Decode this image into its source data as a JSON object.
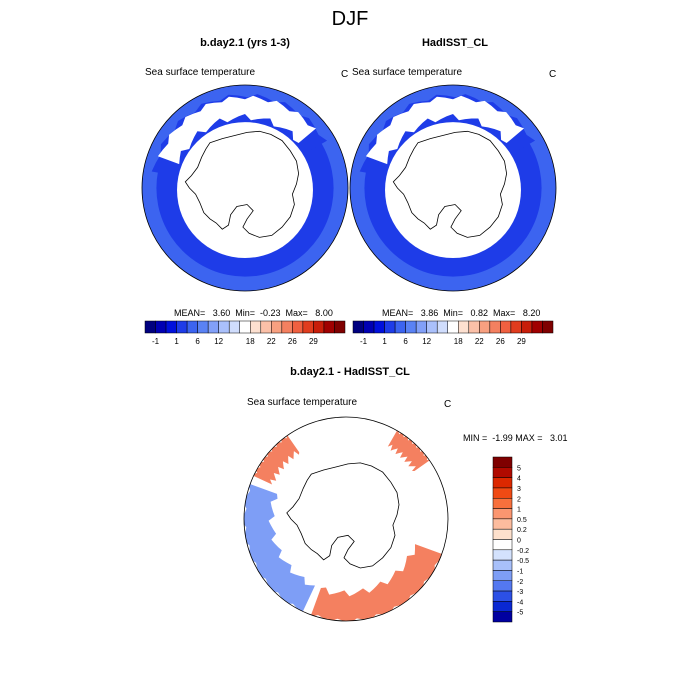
{
  "figure": {
    "title": "DJF",
    "coast_color": "#000000",
    "land_color": "#ffffff"
  },
  "panels": [
    {
      "title": "b.day2.1 (yrs 1-3)",
      "variable": "Sea surface temperature",
      "units": "C",
      "stats_text": "MEAN=   3.60  Min=  -0.23  Max=   8.00",
      "mean": 3.6,
      "min": -0.23,
      "max": 8.0
    },
    {
      "title": "HadISST_CL",
      "variable": "Sea surface temperature",
      "units": "C",
      "stats_text": "MEAN=   3.86  Min=   0.82  Max=   8.20",
      "mean": 3.86,
      "min": 0.82,
      "max": 8.2
    },
    {
      "title": "b.day2.1 - HadISST_CL",
      "variable": "Sea surface temperature",
      "units": "C",
      "stats_text": "MIN =  -1.99 MAX =   3.01",
      "min": -1.99,
      "max": 3.01
    }
  ],
  "chart_data": {
    "type": "heatmap",
    "projection": "south polar stereographic",
    "season": "DJF",
    "sst_colorbar": {
      "labels": [
        "-1",
        "1",
        "6",
        "12",
        "18",
        "22",
        "26",
        "29"
      ],
      "colors": [
        "#00007f",
        "#0000b3",
        "#0010dc",
        "#1e3ce8",
        "#3c64f0",
        "#5a82f4",
        "#82a0f8",
        "#aac0fb",
        "#d0ddfd",
        "#ffffff",
        "#fde0d0",
        "#fbc0a8",
        "#f8a080",
        "#f48060",
        "#f06040",
        "#e03c1e",
        "#c81e0a",
        "#a00000",
        "#7f0000"
      ]
    },
    "diff_colorbar": {
      "labels": [
        "5",
        "4",
        "3",
        "2",
        "1",
        "0.5",
        "0.2",
        "0",
        "-0.2",
        "-0.5",
        "-1",
        "-2",
        "-3",
        "-4",
        "-5"
      ],
      "colors": [
        "#7f0000",
        "#b00a00",
        "#dc2800",
        "#f04a14",
        "#f8703c",
        "#fb9670",
        "#fcbc9e",
        "#fde0cc",
        "#ffffff",
        "#d4e2fd",
        "#a8c0fa",
        "#7e9ef6",
        "#5478f0",
        "#2c50e6",
        "#0a28d2",
        "#0000a0"
      ]
    },
    "field_colors": {
      "sst_model_inner": "#1e3ce8",
      "sst_model_outer": "#3c64f0",
      "sst_obs_inner": "#1e3ce8",
      "sst_obs_outer": "#3c64f0",
      "diff_positive": "#f48060",
      "diff_negative": "#7e9ef6"
    }
  }
}
